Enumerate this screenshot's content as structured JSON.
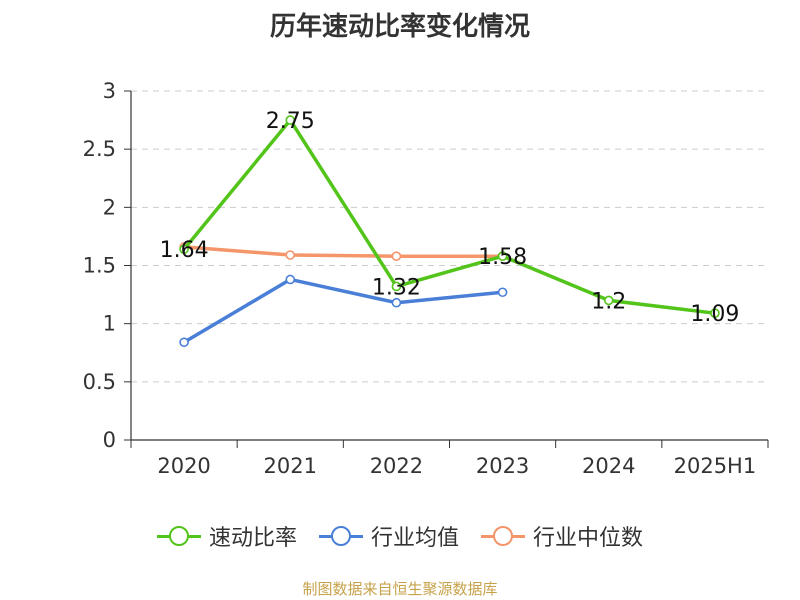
{
  "chart_data": {
    "type": "line",
    "title": "历年速动比率变化情况",
    "categories": [
      "2020",
      "2021",
      "2022",
      "2023",
      "2024",
      "2025H1"
    ],
    "ylim": [
      0,
      3
    ],
    "yticks": [
      "0",
      "0.5",
      "1",
      "1.5",
      "2",
      "2.5",
      "3"
    ],
    "grid": true,
    "legend_position": "bottom",
    "series": [
      {
        "name": "速动比率",
        "color": "#52c41a",
        "values": [
          1.64,
          2.75,
          1.32,
          1.58,
          1.2,
          1.09
        ],
        "labels": [
          "1.64",
          "2.75",
          "1.32",
          "1.58",
          "1.2",
          "1.09"
        ]
      },
      {
        "name": "行业均值",
        "color": "#4a7fd8",
        "values": [
          0.84,
          1.38,
          1.18,
          1.27,
          null,
          null
        ]
      },
      {
        "name": "行业中位数",
        "color": "#f4956a",
        "values": [
          1.66,
          1.59,
          1.58,
          1.58,
          null,
          null
        ]
      }
    ]
  },
  "source": "制图数据来自恒生聚源数据库"
}
